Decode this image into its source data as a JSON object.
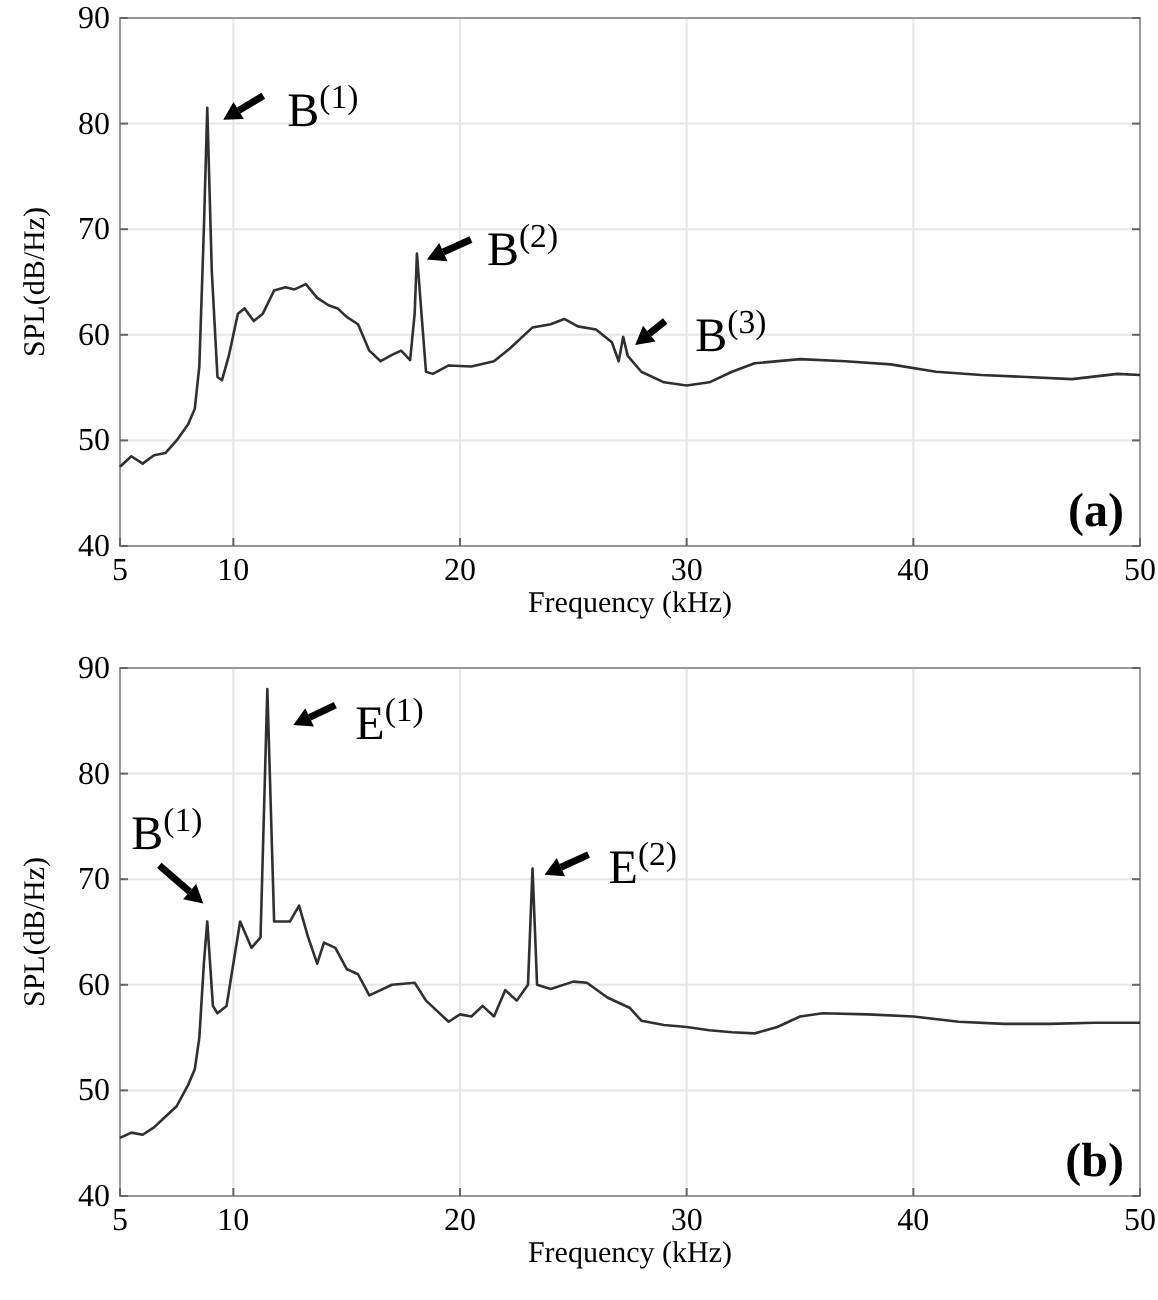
{
  "chart_data": [
    {
      "type": "line",
      "xlabel": "Frequency (kHz)",
      "ylabel": "SPL(dB/Hz)",
      "xlim": [
        5,
        50
      ],
      "ylim": [
        40,
        90
      ],
      "xticks": [
        5,
        10,
        20,
        30,
        40,
        50
      ],
      "yticks": [
        40,
        50,
        60,
        70,
        80,
        90
      ],
      "grid": true,
      "series": [
        {
          "color": "#303030",
          "x": [
            5,
            5.5,
            6,
            6.5,
            7,
            7.5,
            8,
            8.3,
            8.5,
            8.7,
            8.85,
            9.05,
            9.3,
            9.5,
            9.8,
            10.2,
            10.5,
            10.9,
            11.3,
            11.8,
            12.3,
            12.7,
            13.2,
            13.7,
            14.2,
            14.6,
            15,
            15.5,
            16,
            16.5,
            17,
            17.4,
            17.8,
            18,
            18.1,
            18.3,
            18.5,
            18.8,
            19.5,
            20.5,
            21.5,
            22.2,
            23.2,
            24,
            24.6,
            25.2,
            26,
            26.7,
            27,
            27.2,
            27.4,
            28,
            29,
            30,
            31,
            32,
            33,
            35,
            37,
            39,
            41,
            43,
            45,
            47,
            49,
            50
          ],
          "values": [
            47.5,
            48.5,
            47.8,
            48.6,
            48.8,
            50,
            51.5,
            53,
            57,
            70,
            81.5,
            66,
            56,
            55.7,
            58,
            62,
            62.5,
            61.3,
            62,
            64.2,
            64.5,
            64.3,
            64.8,
            63.5,
            62.8,
            62.5,
            61.7,
            61,
            58.5,
            57.5,
            58.1,
            58.5,
            57.6,
            62,
            67.7,
            62,
            56.5,
            56.3,
            57.1,
            57,
            57.5,
            58.7,
            60.7,
            61,
            61.5,
            60.8,
            60.5,
            59.3,
            57.5,
            59.8,
            58,
            56.5,
            55.5,
            55.2,
            55.5,
            56.5,
            57.3,
            57.7,
            57.5,
            57.2,
            56.5,
            56.2,
            56,
            55.8,
            56.3,
            56.2
          ]
        }
      ],
      "annotations": [
        {
          "text": "B$^{(1)}$",
          "x": 8.85,
          "y": 81.5
        },
        {
          "text": "B$^{(2)}$",
          "x": 18.1,
          "y": 67.7
        },
        {
          "text": "B$^{(3)}$",
          "x": 27.2,
          "y": 59.8
        },
        "(a)"
      ]
    },
    {
      "type": "line",
      "xlabel": "Frequency (kHz)",
      "ylabel": "SPL(dB/Hz)",
      "xlim": [
        5,
        50
      ],
      "ylim": [
        40,
        90
      ],
      "xticks": [
        5,
        10,
        20,
        30,
        40,
        50
      ],
      "yticks": [
        40,
        50,
        60,
        70,
        80,
        90
      ],
      "grid": true,
      "series": [
        {
          "color": "#303030",
          "x": [
            5,
            5.5,
            6,
            6.5,
            7,
            7.5,
            8,
            8.3,
            8.5,
            8.7,
            8.85,
            9.1,
            9.3,
            9.7,
            10,
            10.3,
            10.8,
            11.2,
            11.5,
            11.8,
            12.5,
            12.9,
            13.3,
            13.7,
            14,
            14.5,
            15,
            15.5,
            16,
            17,
            18,
            18.5,
            19.5,
            20,
            20.5,
            21,
            21.5,
            22,
            22.5,
            23,
            23.2,
            23.4,
            24,
            25,
            25.6,
            26.5,
            27.5,
            28,
            29,
            30,
            31,
            32,
            33,
            34,
            35,
            36,
            38,
            40,
            42,
            44,
            46,
            48,
            50
          ],
          "values": [
            45.5,
            46,
            45.8,
            46.5,
            47.5,
            48.5,
            50.5,
            52,
            55,
            62,
            66,
            58,
            57.3,
            58,
            62,
            66,
            63.5,
            64.5,
            88,
            66,
            66,
            67.5,
            64.5,
            62,
            64,
            63.5,
            61.5,
            61,
            59,
            60,
            60.2,
            58.5,
            56.5,
            57.2,
            57,
            58,
            57,
            59.5,
            58.5,
            60,
            71,
            60,
            59.6,
            60.3,
            60.2,
            58.8,
            57.8,
            56.6,
            56.2,
            56,
            55.7,
            55.5,
            55.4,
            56,
            57,
            57.3,
            57.2,
            57,
            56.5,
            56.3,
            56.3,
            56.4,
            56.4
          ]
        }
      ],
      "annotations": [
        {
          "text": "B$^{(1)}$",
          "x": 8.85,
          "y": 66
        },
        {
          "text": "E$^{(1)}$",
          "x": 11.5,
          "y": 88
        },
        {
          "text": "E$^{(2)}$",
          "x": 23.2,
          "y": 71
        },
        "(b)"
      ]
    }
  ]
}
